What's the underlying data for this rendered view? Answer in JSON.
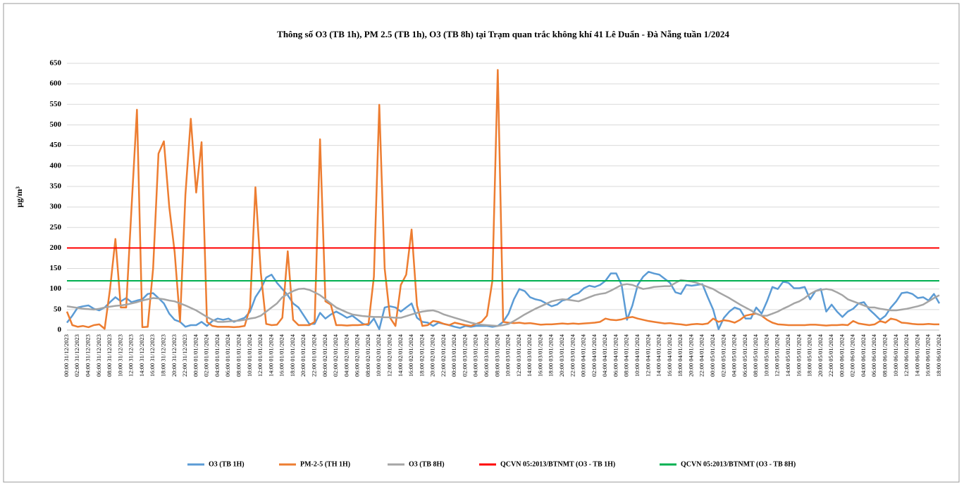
{
  "chart_data": {
    "type": "line",
    "title": "Thông số O3 (TB 1h), PM 2.5 (TB 1h), O3 (TB 8h) tại Trạm quan trắc không khí 41 Lê Duẩn - Đà Nẵng tuần 1/2024",
    "y_label": "µg/m³",
    "categories": [
      "00:00 31/12/2023",
      null,
      "02:00 31/12/2023",
      null,
      "04:00 31/12/2023",
      null,
      "06:00 31/12/2023",
      null,
      "08:00 31/12/2023",
      null,
      "10:00 31/12/2023",
      null,
      "12:00 31/12/2023",
      null,
      "14:00 31/12/2023",
      null,
      "16:00 31/12/2023",
      null,
      "18:00 31/12/2023",
      null,
      "20:00 31/12/2023",
      null,
      "22:00 31/12/2023",
      null,
      "00:00 01/01/2024",
      null,
      "02:00 01/01/2024",
      null,
      "04:00 01/01/2024",
      null,
      "06:00 01/01/2024",
      null,
      "08:00 01/01/2024",
      null,
      "10:00 01/01/2024",
      null,
      "12:00 01/01/2024",
      null,
      "14:00 01/01/2024",
      null,
      "16:00 01/01/2024",
      null,
      "18:00 01/01/2024",
      null,
      "20:00 01/01/2024",
      null,
      "22:00 01/01/2024",
      null,
      "00:00 02/01/2024",
      null,
      "02:00 02/01/2024",
      null,
      "04:00 02/01/2024",
      null,
      "06:00 02/01/2024",
      null,
      "08:00 02/01/2024",
      null,
      "10:00 02/01/2024",
      null,
      "12:00 02/01/2024",
      null,
      "14:00 02/01/2024",
      null,
      "16:00 02/01/2024",
      null,
      "18:00 02/01/2024",
      null,
      "20:00 02/01/2024",
      null,
      "22:00 02/01/2024",
      null,
      "00:00 03/01/2024",
      null,
      "02:00 03/01/2024",
      null,
      "04:00 03/01/2024",
      null,
      "06:00 03/01/2024",
      null,
      "08:00 03/01/2024",
      null,
      "10:00 03/01/2024",
      null,
      "12:00 03/01/2024",
      null,
      "14:00 03/01/2024",
      null,
      "16:00 03/01/2024",
      null,
      "18:00 03/01/2024",
      null,
      "20:00 03/01/2024",
      null,
      "22:00 03/01/2024",
      null,
      "00:00 04/01/2024",
      null,
      "02:00 04/01/2024",
      null,
      "04:00 04/01/2024",
      null,
      "06:00 04/01/2024",
      null,
      "08:00 04/01/2024",
      null,
      "10:00 04/01/2024",
      null,
      "12:00 04/01/2024",
      null,
      "14:00 04/01/2024",
      null,
      "16:00 04/01/2024",
      null,
      "18:00 04/01/2024",
      null,
      "20:00 04/01/2024",
      null,
      "22:00 04/01/2024",
      null,
      "00:00 05/01/2024",
      null,
      "02:00 05/01/2024",
      null,
      "04:00 05/01/2024",
      null,
      "06:00 05/01/2024",
      null,
      "08:00 05/01/2024",
      null,
      "10:00 05/01/2024",
      null,
      "12:00 05/01/2024",
      null,
      "14:00 05/01/2024",
      null,
      "16:00 05/01/2024",
      null,
      "18:00 05/01/2024",
      null,
      "20:00 05/01/2024",
      null,
      "22:00 05/01/2024",
      null,
      "00:00 06/01/2024",
      null,
      "02:00 06/01/2024",
      null,
      "04:00 06/01/2024",
      null,
      "06:00 06/01/2024",
      null,
      "08:00 06/01/2024",
      null,
      "10:00 06/01/2024",
      null,
      "12:00 06/01/2024",
      null,
      "14:00 06/01/2024",
      null,
      "16:00 06/01/2024",
      null,
      "18:00 06/01/2024"
    ],
    "series": [
      {
        "name": "O3 (TB 1H)",
        "color": "#5b9bd5",
        "values": [
          18,
          35,
          55,
          58,
          60,
          52,
          48,
          55,
          68,
          80,
          70,
          78,
          68,
          72,
          75,
          88,
          90,
          78,
          65,
          40,
          25,
          20,
          8,
          12,
          12,
          20,
          10,
          22,
          28,
          25,
          28,
          20,
          25,
          30,
          45,
          80,
          100,
          128,
          135,
          115,
          100,
          85,
          65,
          55,
          35,
          15,
          15,
          42,
          28,
          38,
          45,
          38,
          30,
          35,
          25,
          15,
          12,
          28,
          2,
          55,
          58,
          55,
          45,
          55,
          65,
          30,
          20,
          18,
          10,
          18,
          15,
          12,
          8,
          5,
          10,
          8,
          10,
          10,
          10,
          8,
          10,
          20,
          40,
          75,
          100,
          95,
          80,
          75,
          72,
          65,
          58,
          62,
          72,
          75,
          85,
          90,
          102,
          108,
          105,
          110,
          120,
          138,
          138,
          110,
          25,
          60,
          110,
          130,
          142,
          138,
          135,
          125,
          115,
          92,
          88,
          110,
          108,
          110,
          112,
          80,
          50,
          2,
          30,
          45,
          55,
          50,
          28,
          28,
          55,
          40,
          70,
          105,
          100,
          118,
          115,
          102,
          102,
          105,
          75,
          95,
          100,
          45,
          62,
          45,
          32,
          45,
          52,
          65,
          68,
          50,
          38,
          25,
          35,
          55,
          70,
          90,
          92,
          88,
          78,
          80,
          72,
          88,
          65
        ]
      },
      {
        "name": "PM-2-5 (TH 1H)",
        "color": "#ed7d31",
        "values": [
          45,
          12,
          8,
          10,
          7,
          12,
          14,
          3,
          100,
          222,
          55,
          55,
          300,
          537,
          7,
          8,
          150,
          430,
          460,
          300,
          190,
          20,
          330,
          515,
          335,
          458,
          20,
          10,
          8,
          8,
          8,
          7,
          8,
          10,
          55,
          348,
          140,
          15,
          12,
          13,
          30,
          192,
          25,
          12,
          12,
          12,
          20,
          465,
          70,
          62,
          12,
          12,
          11,
          12,
          12,
          13,
          15,
          130,
          549,
          150,
          30,
          10,
          110,
          135,
          245,
          60,
          10,
          12,
          22,
          20,
          15,
          12,
          18,
          15,
          12,
          10,
          15,
          20,
          35,
          120,
          634,
          20,
          18,
          17,
          18,
          16,
          17,
          15,
          13,
          14,
          14,
          15,
          16,
          15,
          16,
          15,
          16,
          17,
          18,
          20,
          28,
          25,
          24,
          26,
          30,
          32,
          28,
          25,
          22,
          20,
          18,
          16,
          17,
          15,
          14,
          12,
          14,
          15,
          14,
          16,
          28,
          20,
          24,
          22,
          18,
          25,
          35,
          38,
          40,
          35,
          25,
          18,
          14,
          13,
          12,
          12,
          12,
          12,
          13,
          13,
          12,
          11,
          12,
          12,
          13,
          12,
          22,
          16,
          14,
          12,
          14,
          22,
          18,
          28,
          25,
          18,
          17,
          15,
          14,
          14,
          15,
          14,
          14
        ]
      },
      {
        "name": "O3 (TB 8H)",
        "color": "#a5a5a5",
        "values": [
          58,
          56,
          54,
          52,
          51,
          50,
          52,
          55,
          57,
          59,
          60,
          62,
          65,
          68,
          72,
          75,
          78,
          77,
          75,
          72,
          70,
          65,
          60,
          54,
          48,
          40,
          32,
          25,
          20,
          20,
          21,
          22,
          23,
          25,
          28,
          30,
          35,
          45,
          55,
          65,
          80,
          88,
          95,
          100,
          101,
          98,
          92,
          85,
          75,
          65,
          55,
          49,
          43,
          38,
          36,
          34,
          33,
          32,
          32,
          31,
          31,
          30,
          30,
          34,
          38,
          42,
          45,
          47,
          48,
          44,
          38,
          34,
          30,
          26,
          22,
          18,
          15,
          13,
          12,
          11,
          10,
          12,
          15,
          22,
          30,
          38,
          45,
          52,
          58,
          64,
          70,
          73,
          75,
          74,
          72,
          70,
          75,
          80,
          85,
          88,
          90,
          96,
          103,
          110,
          112,
          110,
          105,
          100,
          102,
          105,
          106,
          107,
          107,
          115,
          122,
          120,
          118,
          115,
          110,
          105,
          100,
          92,
          85,
          78,
          70,
          62,
          55,
          48,
          40,
          35,
          35,
          40,
          45,
          52,
          58,
          65,
          70,
          78,
          88,
          95,
          98,
          100,
          98,
          92,
          85,
          75,
          70,
          65,
          60,
          55,
          55,
          52,
          50,
          48,
          48,
          50,
          52,
          55,
          58,
          62,
          70,
          78,
          85
        ]
      }
    ],
    "reference_lines": [
      {
        "name": "QCVN 05:2013/BTNMT (O3 - TB 1H)",
        "color": "#ff0000",
        "value": 200
      },
      {
        "name": "QCVN 05:2013/BTNMT (O3 - TB 8H)",
        "color": "#00b050",
        "value": 120
      }
    ],
    "ylim": [
      0,
      650
    ],
    "yticks": [
      0,
      50,
      100,
      150,
      200,
      250,
      300,
      350,
      400,
      450,
      500,
      550,
      600,
      650
    ],
    "grid": true,
    "legend": "bottom"
  }
}
